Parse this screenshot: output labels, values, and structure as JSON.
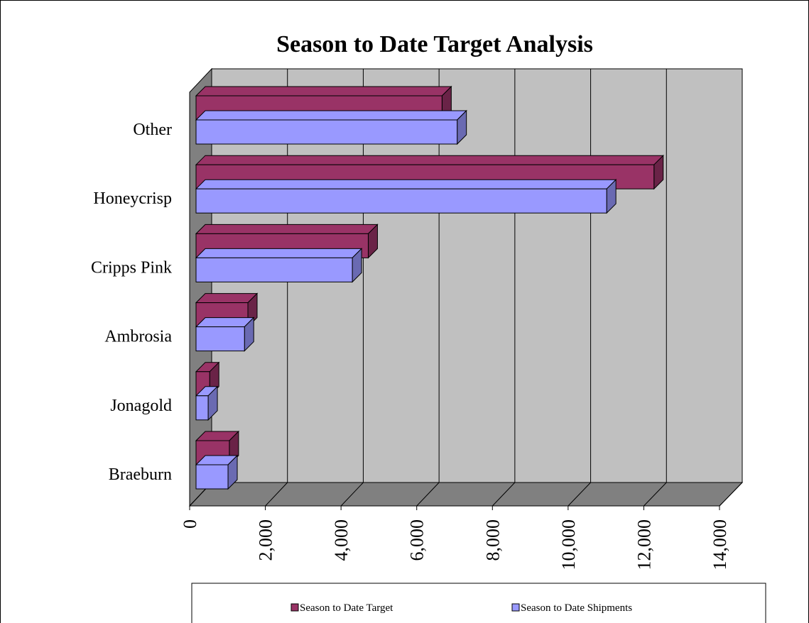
{
  "chart_data": {
    "type": "bar3d_horizontal",
    "title": "Season to Date Target Analysis",
    "categories": [
      "Braeburn",
      "Jonagold",
      "Ambrosia",
      "Cripps Pink",
      "Honeycrisp",
      "Other"
    ],
    "series": [
      {
        "name": "Season to Date Target",
        "color": "#993366",
        "values": [
          880,
          360,
          1370,
          4550,
          12100,
          6500
        ]
      },
      {
        "name": "Season to Date Shipments",
        "color": "#9999ff",
        "values": [
          845,
          320,
          1280,
          4130,
          10850,
          6900
        ]
      }
    ],
    "xlim": [
      0,
      14000
    ],
    "xticks": [
      0,
      {
        "value": 2000,
        "label": "2,000"
      },
      {
        "value": 4000,
        "label": "4,000"
      },
      {
        "value": 6000,
        "label": "6,000"
      },
      {
        "value": 8000,
        "label": "8,000"
      },
      {
        "value": 10000,
        "label": "10,000"
      },
      {
        "value": 12000,
        "label": "12,000"
      },
      {
        "value": 14000,
        "label": "14,000"
      }
    ],
    "grid": true
  }
}
